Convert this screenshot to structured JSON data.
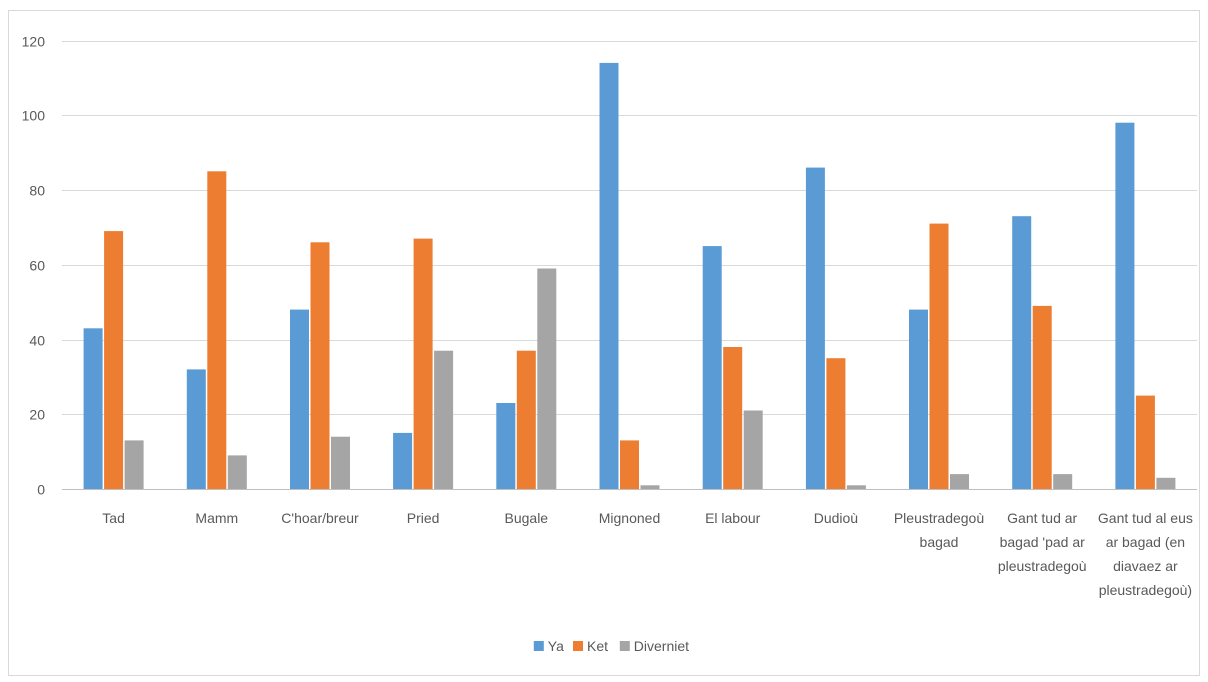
{
  "chart_data": {
    "type": "bar",
    "categories": [
      "Tad",
      "Mamm",
      "C'hoar/breur",
      "Pried",
      "Bugale",
      "Mignoned",
      "El labour",
      "Dudioù",
      "Pleustradegoù bagad",
      "Gant tud ar bagad 'pad ar pleustradegoù",
      "Gant tud al eus ar bagad (en diavaez ar pleustradegoù)"
    ],
    "category_lines": [
      [
        "Tad"
      ],
      [
        "Mamm"
      ],
      [
        "C'hoar/breur"
      ],
      [
        "Pried"
      ],
      [
        "Bugale"
      ],
      [
        "Mignoned"
      ],
      [
        "El labour"
      ],
      [
        "Dudioù"
      ],
      [
        "Pleustradegoù",
        "bagad"
      ],
      [
        "Gant tud ar",
        "bagad 'pad ar",
        "pleustradegoù"
      ],
      [
        "Gant tud al eus",
        "ar bagad (en",
        "diavaez ar",
        "pleustradegoù)"
      ]
    ],
    "series": [
      {
        "name": "Ya",
        "color": "#5b9bd5",
        "values": [
          43,
          32,
          48,
          15,
          23,
          114,
          65,
          86,
          48,
          73,
          98
        ]
      },
      {
        "name": "Ket",
        "color": "#ed7d31",
        "values": [
          69,
          85,
          66,
          67,
          37,
          13,
          38,
          35,
          71,
          49,
          25
        ]
      },
      {
        "name": "Diverniet",
        "color": "#a5a5a5",
        "values": [
          13,
          9,
          14,
          37,
          59,
          1,
          21,
          1,
          4,
          4,
          3
        ]
      }
    ],
    "yticks": [
      0,
      20,
      40,
      60,
      80,
      100,
      120
    ],
    "ylim": [
      0,
      120
    ],
    "grid": true,
    "legend_position": "bottom",
    "title": "",
    "xlabel": "",
    "ylabel": ""
  }
}
